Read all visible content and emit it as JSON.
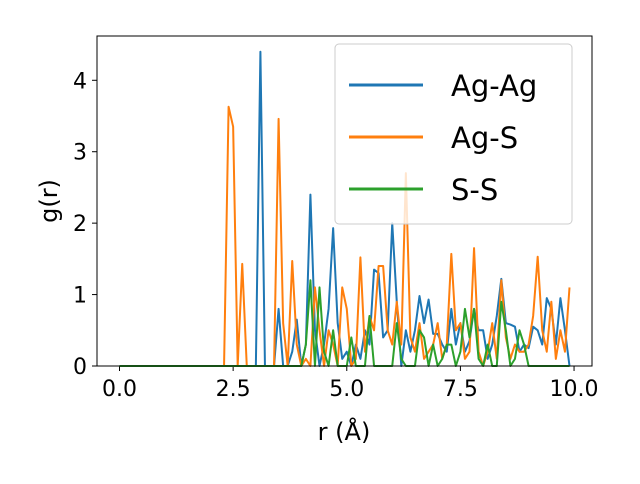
{
  "chart_data": {
    "type": "line",
    "xlabel": "r (Å)",
    "ylabel": "g(r)",
    "x": [
      0,
      0.1,
      0.2,
      0.3,
      0.4,
      0.5,
      0.6,
      0.7,
      0.8,
      0.9,
      1,
      1.1,
      1.2,
      1.3,
      1.4,
      1.5,
      1.6,
      1.7,
      1.8,
      1.9,
      2,
      2.1,
      2.2,
      2.3,
      2.4,
      2.5,
      2.6,
      2.7,
      2.8,
      2.9,
      3,
      3.1,
      3.2,
      3.3,
      3.4,
      3.5,
      3.6,
      3.7,
      3.8,
      3.9,
      4,
      4.1,
      4.2,
      4.3,
      4.4,
      4.5,
      4.6,
      4.7,
      4.8,
      4.9,
      5,
      5.1,
      5.2,
      5.3,
      5.4,
      5.5,
      5.6,
      5.7,
      5.8,
      5.9,
      6,
      6.1,
      6.2,
      6.3,
      6.4,
      6.5,
      6.6,
      6.7,
      6.8,
      6.9,
      7,
      7.1,
      7.2,
      7.3,
      7.4,
      7.5,
      7.6,
      7.7,
      7.8,
      7.9,
      8,
      8.1,
      8.2,
      8.3,
      8.4,
      8.5,
      8.6,
      8.7,
      8.8,
      8.9,
      9,
      9.1,
      9.2,
      9.3,
      9.4,
      9.5,
      9.6,
      9.7,
      9.8,
      9.9
    ],
    "series": [
      {
        "name": "Ag-Ag",
        "color": "#1f77b4",
        "values": [
          0,
          0,
          0,
          0,
          0,
          0,
          0,
          0,
          0,
          0,
          0,
          0,
          0,
          0,
          0,
          0,
          0,
          0,
          0,
          0,
          0,
          0,
          0,
          0,
          0,
          0,
          0,
          0,
          0,
          0,
          0,
          4.4,
          0,
          0,
          0,
          0.8,
          0,
          0,
          0.2,
          0.65,
          0,
          0.3,
          2.4,
          0.5,
          0,
          0.3,
          0.8,
          1.93,
          0.6,
          0.1,
          0.2,
          0,
          0.3,
          0.1,
          0.5,
          0.3,
          1.35,
          1.3,
          0.4,
          0.5,
          2.0,
          0.9,
          0,
          0.5,
          0.2,
          0.5,
          0.98,
          0.6,
          0.93,
          0.45,
          0.45,
          0.3,
          0.2,
          0.8,
          0.3,
          0.6,
          0.2,
          0.35,
          0.8,
          0.5,
          0.5,
          0.1,
          0.3,
          0.7,
          1.22,
          0.6,
          0.58,
          0.55,
          0.2,
          0.3,
          0.25,
          0.55,
          0.5,
          0.3,
          0.95,
          0.8,
          0.3,
          0.95,
          0.5,
          0
        ]
      },
      {
        "name": "Ag-S",
        "color": "#ff7f0e",
        "values": [
          0,
          0,
          0,
          0,
          0,
          0,
          0,
          0,
          0,
          0,
          0,
          0,
          0,
          0,
          0,
          0,
          0,
          0,
          0,
          0,
          0,
          0,
          0,
          0,
          3.63,
          3.35,
          0,
          1.43,
          0,
          0,
          0,
          0,
          0,
          0,
          0,
          3.46,
          0.6,
          0,
          1.47,
          0.3,
          0,
          0.1,
          0,
          1.1,
          0.5,
          0,
          0.5,
          0.3,
          0,
          1.1,
          0.8,
          0,
          0.1,
          1.52,
          0.2,
          0.7,
          0.5,
          1.4,
          1.4,
          0.5,
          0.3,
          0.9,
          0.3,
          2.7,
          0.4,
          0.2,
          0.6,
          0.1,
          0.2,
          0.3,
          0.6,
          0.1,
          0.3,
          1.57,
          0.5,
          0.6,
          0.1,
          0.2,
          1.65,
          0.2,
          0,
          0.2,
          0.6,
          0.1,
          1.2,
          0.4,
          0.1,
          0.3,
          0.2,
          0.2,
          0.3,
          0.7,
          1.53,
          0.5,
          0.2,
          0.9,
          0.1,
          0.5,
          0.2,
          1.1
        ]
      },
      {
        "name": "S-S",
        "color": "#2ca02c",
        "values": [
          0,
          0,
          0,
          0,
          0,
          0,
          0,
          0,
          0,
          0,
          0,
          0,
          0,
          0,
          0,
          0,
          0,
          0,
          0,
          0,
          0,
          0,
          0,
          0,
          0,
          0,
          0,
          0,
          0,
          0,
          0,
          0,
          0,
          0,
          0,
          0,
          0,
          0,
          0,
          0,
          0,
          0.3,
          1.2,
          0,
          1.1,
          0.2,
          0,
          0.5,
          0,
          0,
          0,
          0.4,
          0,
          0,
          0,
          0.7,
          0,
          0,
          0,
          0,
          0,
          0.6,
          0.1,
          0,
          0,
          0,
          0.5,
          0.4,
          0,
          0.3,
          0,
          0.1,
          0.3,
          0.3,
          0,
          0.2,
          0.8,
          0.4,
          0.8,
          0.1,
          0,
          0.3,
          0,
          0,
          0.9,
          0.5,
          0,
          0.1,
          0.5,
          0.3,
          0,
          0,
          0,
          0,
          0,
          0,
          0,
          0,
          0,
          0
        ]
      }
    ],
    "xlim": [
      -0.495,
      10.395
    ],
    "ylim": [
      0,
      4.62
    ],
    "xticks": [
      {
        "value": 0,
        "label": "0.0"
      },
      {
        "value": 2.5,
        "label": "2.5"
      },
      {
        "value": 5,
        "label": "5.0"
      },
      {
        "value": 7.5,
        "label": "7.5"
      },
      {
        "value": 10,
        "label": "10.0"
      }
    ],
    "yticks": [
      0,
      1,
      2,
      3,
      4
    ],
    "legend": "upper right"
  }
}
